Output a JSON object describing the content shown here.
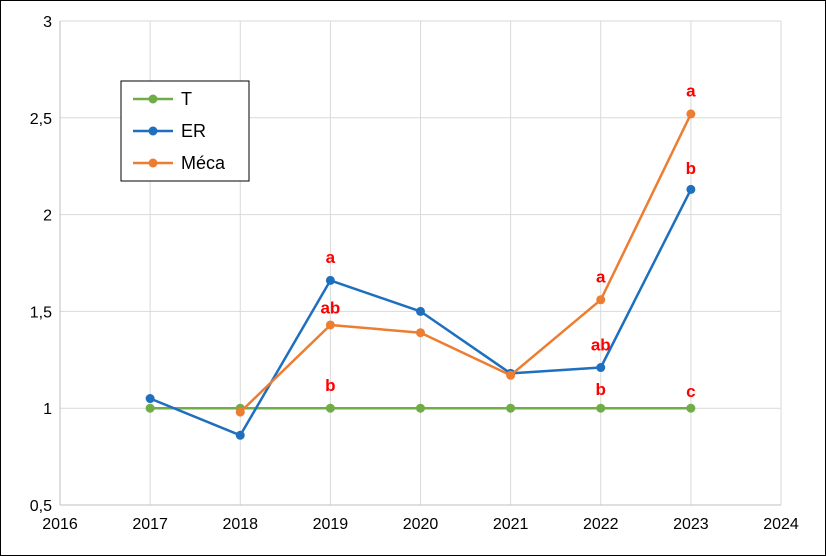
{
  "chart_data": {
    "type": "line",
    "x_ticks": [
      "2016",
      "2017",
      "2018",
      "2019",
      "2020",
      "2021",
      "2022",
      "2023",
      "2024"
    ],
    "y_ticks": [
      "0,5",
      "1",
      "1,5",
      "2",
      "2,5",
      "3"
    ],
    "xlim": [
      2016,
      2024
    ],
    "ylim": [
      0.5,
      3
    ],
    "grid": true,
    "legend_position": "top-left",
    "series": [
      {
        "name": "T",
        "color": "#70ad47",
        "points": [
          [
            2017,
            1.0
          ],
          [
            2018,
            1.0
          ],
          [
            2019,
            1.0
          ],
          [
            2020,
            1.0
          ],
          [
            2021,
            1.0
          ],
          [
            2022,
            1.0
          ],
          [
            2023,
            1.0
          ]
        ]
      },
      {
        "name": "ER",
        "color": "#1f6fbf",
        "points": [
          [
            2017,
            1.05
          ],
          [
            2018,
            0.86
          ],
          [
            2019,
            1.66
          ],
          [
            2020,
            1.5
          ],
          [
            2021,
            1.18
          ],
          [
            2022,
            1.21
          ],
          [
            2023,
            2.13
          ]
        ]
      },
      {
        "name": "Méca",
        "color": "#ed7d31",
        "points": [
          [
            2018,
            0.98
          ],
          [
            2019,
            1.43
          ],
          [
            2020,
            1.39
          ],
          [
            2021,
            1.17
          ],
          [
            2022,
            1.56
          ],
          [
            2023,
            2.52
          ]
        ]
      }
    ],
    "annotations": [
      {
        "text": "a",
        "x": 2019,
        "y": 1.78
      },
      {
        "text": "ab",
        "x": 2019,
        "y": 1.52
      },
      {
        "text": "b",
        "x": 2019,
        "y": 1.12
      },
      {
        "text": "a",
        "x": 2022,
        "y": 1.68
      },
      {
        "text": "ab",
        "x": 2022,
        "y": 1.33
      },
      {
        "text": "b",
        "x": 2022,
        "y": 1.1
      },
      {
        "text": "a",
        "x": 2023,
        "y": 2.64
      },
      {
        "text": "b",
        "x": 2023,
        "y": 2.24
      },
      {
        "text": "c",
        "x": 2023,
        "y": 1.09
      }
    ]
  }
}
